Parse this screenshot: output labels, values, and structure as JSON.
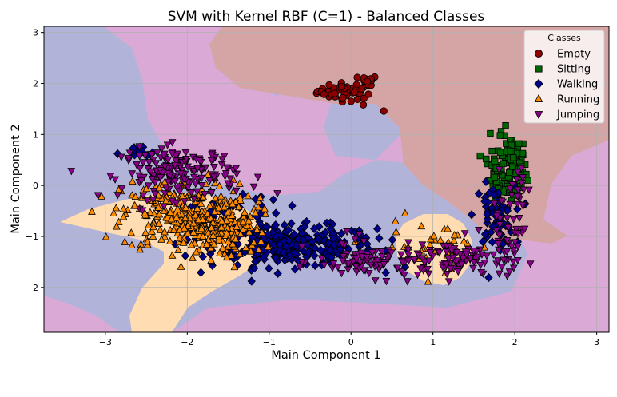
{
  "chart_data": {
    "type": "scatter",
    "title": "SVM with Kernel RBF (C=1) - Balanced Classes",
    "xlabel": "Main Component 1",
    "ylabel": "Main Component 2",
    "xlim": [
      -3.75,
      3.15
    ],
    "ylim": [
      -2.88,
      3.12
    ],
    "xticks": [
      -3,
      -2,
      -1,
      0,
      1,
      2,
      3
    ],
    "yticks": [
      -2,
      -1,
      0,
      1,
      2,
      3
    ],
    "xtick_labels": [
      "−3",
      "−2",
      "−1",
      "0",
      "1",
      "2",
      "3"
    ],
    "ytick_labels": [
      "−2",
      "−1",
      "0",
      "1",
      "2",
      "3"
    ],
    "grid": true,
    "legend": {
      "title": "Classes",
      "position": "top-right"
    },
    "series": [
      {
        "name": "Empty",
        "marker": "circle",
        "color": "#8b0000",
        "clusters": [
          {
            "center": [
              -0.05,
              1.85
            ],
            "spread": [
              0.18,
              0.08
            ],
            "count": 50
          },
          {
            "center": [
              0.2,
              2.08
            ],
            "spread": [
              0.06,
              0.03
            ],
            "count": 10
          }
        ],
        "points": [
          [
            0.4,
            1.46
          ],
          [
            0.15,
            1.58
          ],
          [
            -0.1,
            1.72
          ],
          [
            0.0,
            1.65
          ]
        ]
      },
      {
        "name": "Sitting",
        "marker": "square",
        "color": "#006400",
        "clusters": [
          {
            "center": [
              1.95,
              0.3
            ],
            "spread": [
              0.1,
              0.35
            ],
            "count": 100
          },
          {
            "center": [
              1.75,
              0.35
            ],
            "spread": [
              0.05,
              0.2
            ],
            "count": 20
          }
        ],
        "points": [
          [
            1.7,
            1.02
          ],
          [
            1.82,
            0.98
          ],
          [
            2.05,
            0.82
          ],
          [
            1.65,
            0.52
          ]
        ]
      },
      {
        "name": "Walking",
        "marker": "diamond",
        "color": "#00008b",
        "clusters": [
          {
            "center": [
              -0.7,
              -1.2
            ],
            "spread": [
              0.5,
              0.2
            ],
            "count": 280
          },
          {
            "center": [
              -1.5,
              -0.65
            ],
            "spread": [
              0.3,
              0.2
            ],
            "count": 60
          },
          {
            "center": [
              1.75,
              -0.6
            ],
            "spread": [
              0.12,
              0.3
            ],
            "count": 60
          },
          {
            "center": [
              -2.6,
              0.62
            ],
            "spread": [
              0.12,
              0.08
            ],
            "count": 15
          }
        ],
        "points": [
          [
            -0.95,
            -0.28
          ],
          [
            -0.72,
            -0.4
          ],
          [
            -1.1,
            -0.22
          ],
          [
            -0.45,
            -0.85
          ],
          [
            -0.25,
            -0.85
          ]
        ]
      },
      {
        "name": "Running",
        "marker": "triangle-up",
        "color": "#ff8c00",
        "clusters": [
          {
            "center": [
              -2.0,
              -0.6
            ],
            "spread": [
              0.4,
              0.35
            ],
            "count": 300
          },
          {
            "center": [
              -1.55,
              -0.95
            ],
            "spread": [
              0.25,
              0.25
            ],
            "count": 80
          },
          {
            "center": [
              1.1,
              -1.2
            ],
            "spread": [
              0.35,
              0.22
            ],
            "count": 40
          }
        ],
        "points": [
          [
            0.66,
            -0.55
          ],
          [
            0.55,
            -0.92
          ],
          [
            -2.35,
            -0.2
          ],
          [
            -2.55,
            -0.25
          ],
          [
            -1.25,
            -0.7
          ],
          [
            -1.1,
            -1.1
          ]
        ]
      },
      {
        "name": "Jumping",
        "marker": "triangle-down",
        "color": "#8b008b",
        "clusters": [
          {
            "center": [
              -2.1,
              0.25
            ],
            "spread": [
              0.35,
              0.25
            ],
            "count": 180
          },
          {
            "center": [
              0.3,
              -1.5
            ],
            "spread": [
              0.35,
              0.15
            ],
            "count": 90
          },
          {
            "center": [
              1.3,
              -1.45
            ],
            "spread": [
              0.3,
              0.2
            ],
            "count": 80
          },
          {
            "center": [
              1.9,
              -1.1
            ],
            "spread": [
              0.1,
              0.3
            ],
            "count": 40
          },
          {
            "center": [
              2.05,
              0.0
            ],
            "spread": [
              0.08,
              0.25
            ],
            "count": 20
          }
        ],
        "points": [
          [
            -0.9,
            -0.15
          ],
          [
            -0.6,
            -1.2
          ],
          [
            0.1,
            -0.95
          ],
          [
            0.05,
            -1.05
          ],
          [
            0.65,
            -1.75
          ],
          [
            -0.05,
            -0.9
          ]
        ]
      }
    ],
    "decision_regions": [
      {
        "class": "Empty",
        "color": "#d4a5a4"
      },
      {
        "class": "Walking",
        "color": "#b2b3d9"
      },
      {
        "class": "Running",
        "color": "#ffdcb2"
      },
      {
        "class": "Jumping",
        "color": "#daa9d6"
      }
    ]
  }
}
